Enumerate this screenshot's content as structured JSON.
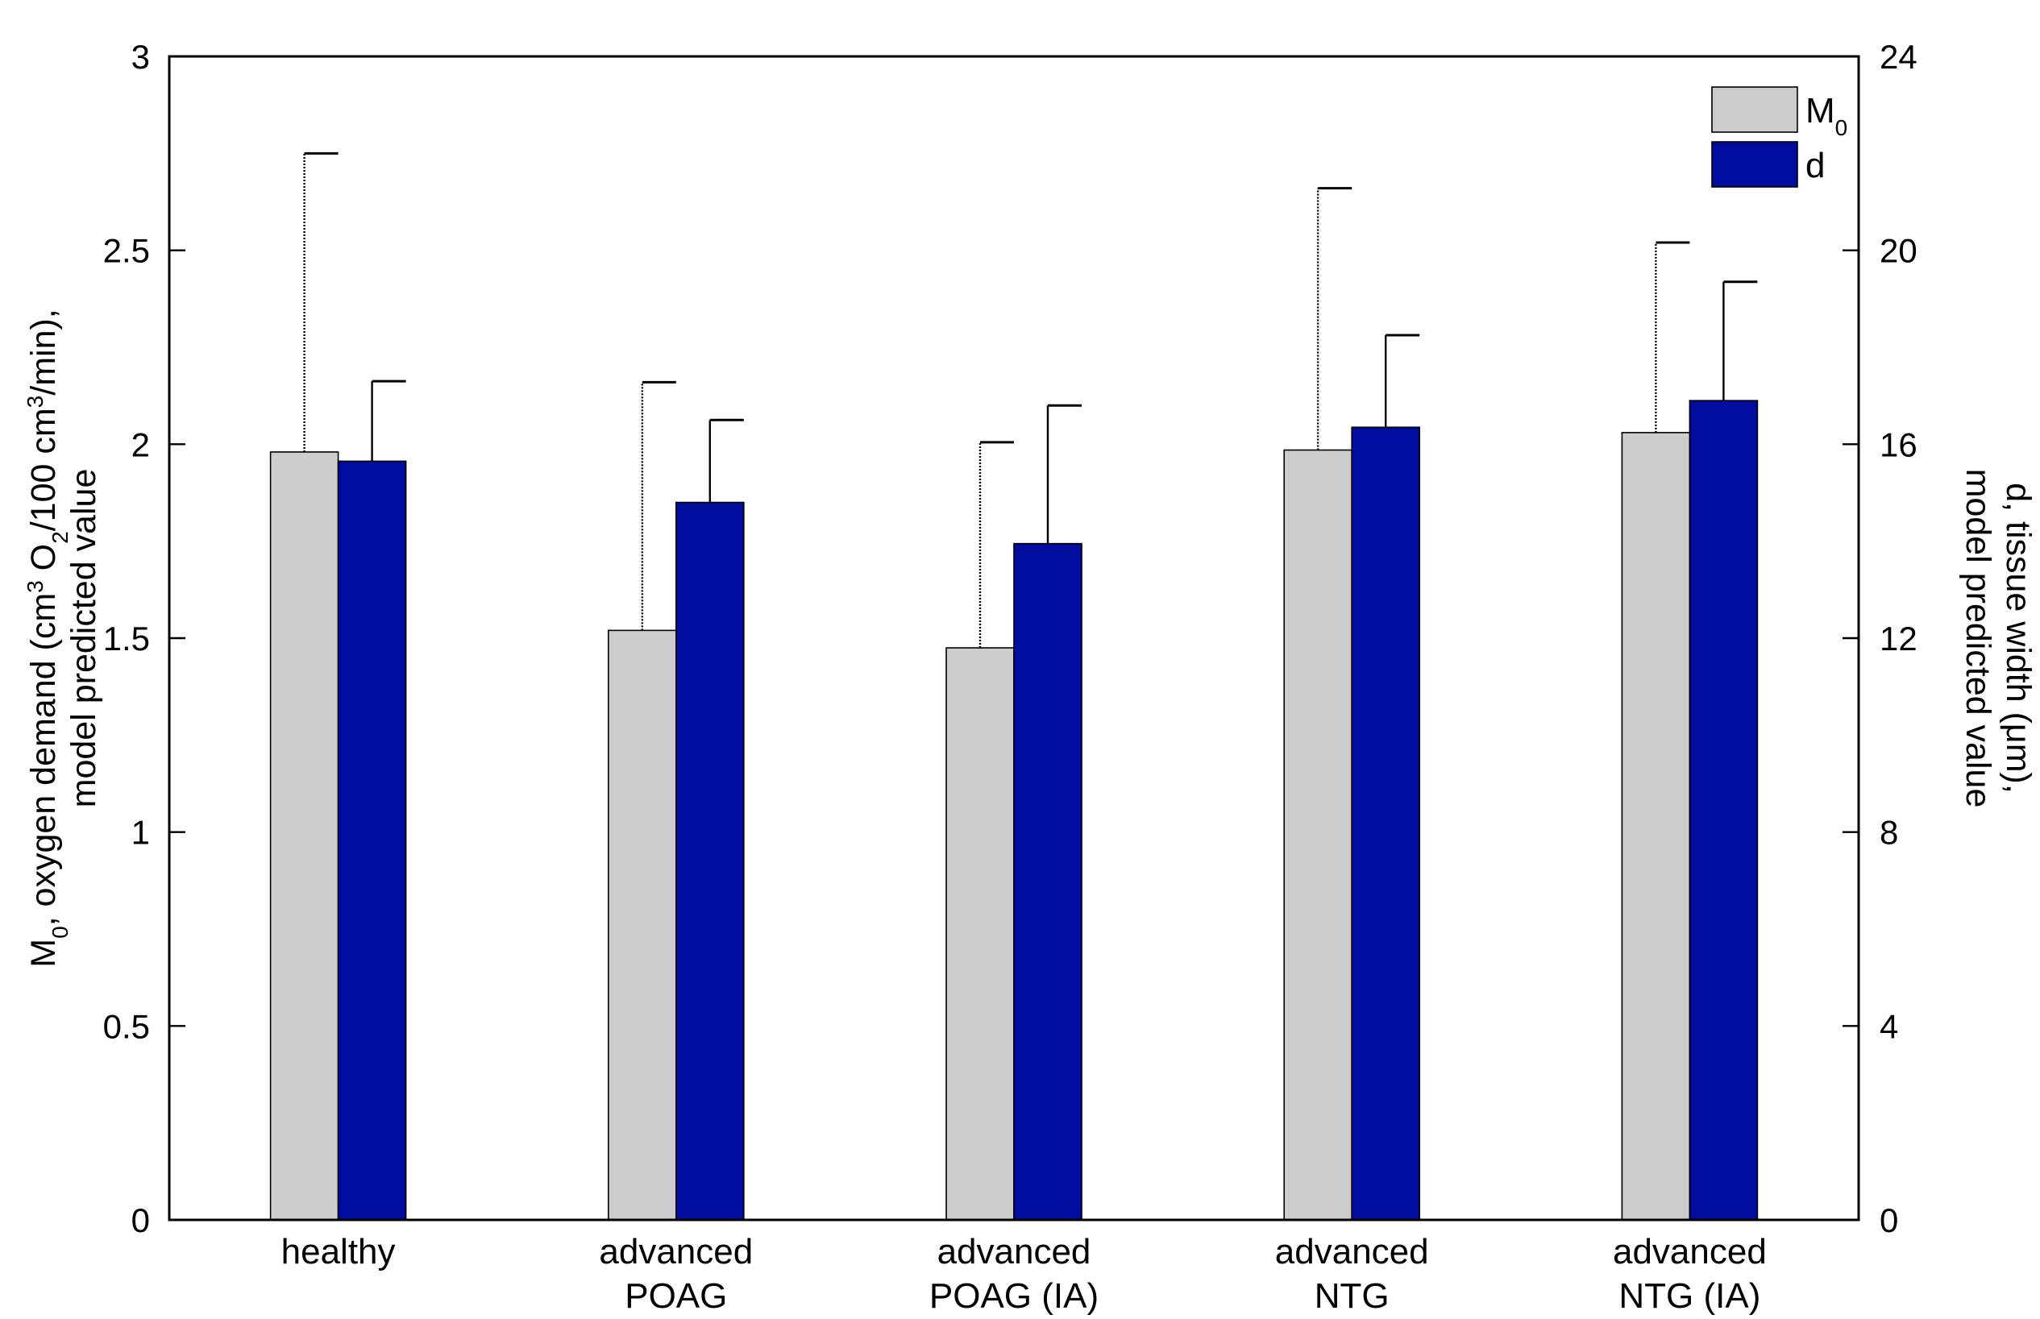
{
  "chart_data": {
    "type": "bar",
    "categories": [
      [
        "healthy"
      ],
      [
        "advanced",
        "POAG"
      ],
      [
        "advanced",
        "POAG (IA)"
      ],
      [
        "advanced",
        "NTG"
      ],
      [
        "advanced",
        "NTG (IA)"
      ]
    ],
    "series": [
      {
        "name": "M0",
        "legend_main": "M",
        "legend_sub": "0",
        "axis": "left",
        "color": "#cccccc",
        "values": [
          1.98,
          1.52,
          1.475,
          1.985,
          2.03
        ],
        "errors": [
          0.77,
          0.64,
          0.53,
          0.675,
          0.49
        ],
        "error_style": "dotted"
      },
      {
        "name": "d",
        "legend_main": "d",
        "legend_sub": "",
        "axis": "right",
        "color": "#000c9e",
        "values": [
          15.65,
          14.8,
          13.95,
          16.35,
          16.9
        ],
        "errors": [
          1.65,
          1.7,
          2.85,
          1.9,
          2.45
        ],
        "error_style": "solid"
      }
    ],
    "left_axis": {
      "ylim": [
        0,
        3
      ],
      "ticks": [
        0,
        0.5,
        1,
        1.5,
        2,
        2.5,
        3
      ],
      "tick_labels": [
        "0",
        "0.5",
        "1",
        "1.5",
        "2",
        "2.5",
        "3"
      ],
      "label_parts": [
        {
          "t": "M"
        },
        {
          "t": "0",
          "sub": true
        },
        {
          "t": ", oxygen demand (cm"
        },
        {
          "t": "3",
          "sup": true
        },
        {
          "t": " O"
        },
        {
          "t": "2",
          "sub": true
        },
        {
          "t": "/100 cm"
        },
        {
          "t": "3",
          "sup": true
        },
        {
          "t": "/min),"
        }
      ],
      "label_line2": "model predicted value"
    },
    "right_axis": {
      "ylim": [
        0,
        24
      ],
      "ticks": [
        0,
        4,
        8,
        12,
        16,
        20,
        24
      ],
      "tick_labels": [
        "0",
        "4",
        "8",
        "12",
        "16",
        "20",
        "24"
      ],
      "label_line1": "d, tissue width (μm),",
      "label_line2": "model predicted value"
    },
    "legend_position": "top-right"
  }
}
